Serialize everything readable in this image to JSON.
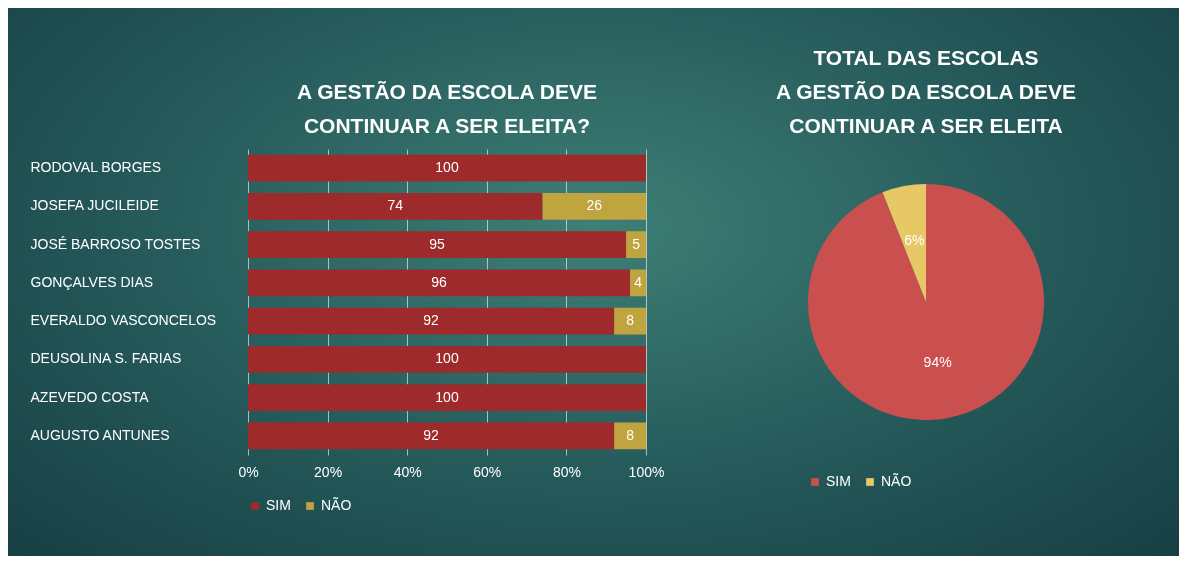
{
  "chart_data": [
    {
      "type": "bar",
      "orientation": "horizontal",
      "stacked": true,
      "title": "A GESTÃO DA ESCOLA DEVE\nCONTINUAR A SER ELEITA?",
      "categories": [
        "RODOVAL BORGES",
        "JOSEFA JUCILEIDE",
        "JOSÉ BARROSO TOSTES",
        "GONÇALVES DIAS",
        "EVERALDO VASCONCELOS",
        "DEUSOLINA S. FARIAS",
        "AZEVEDO COSTA",
        "AUGUSTO ANTUNES"
      ],
      "series": [
        {
          "name": "SIM",
          "color": "#9e2a2b",
          "values": [
            100,
            74,
            95,
            96,
            92,
            100,
            100,
            92
          ]
        },
        {
          "name": "NÃO",
          "color": "#bfa43f",
          "values": [
            null,
            26,
            5,
            4,
            8,
            null,
            null,
            8
          ]
        }
      ],
      "xlim": [
        0,
        100
      ],
      "xticks": [
        {
          "value": 0,
          "label": "0%"
        },
        {
          "value": 20,
          "label": "20%"
        },
        {
          "value": 40,
          "label": "40%"
        },
        {
          "value": 60,
          "label": "60%"
        },
        {
          "value": 80,
          "label": "80%"
        },
        {
          "value": 100,
          "label": "100%"
        }
      ],
      "grid": "x",
      "legend": "bottom",
      "data_labels": true
    },
    {
      "type": "pie",
      "title": "TOTAL DAS ESCOLAS\nA GESTÃO DA ESCOLA DEVE\nCONTINUAR A SER ELEITA",
      "categories": [
        "SIM",
        "NÃO"
      ],
      "values": [
        94,
        6
      ],
      "colors": [
        "#c9504e",
        "#e6c867"
      ],
      "value_labels": [
        "94%",
        "6%"
      ],
      "legend": "bottom"
    }
  ]
}
